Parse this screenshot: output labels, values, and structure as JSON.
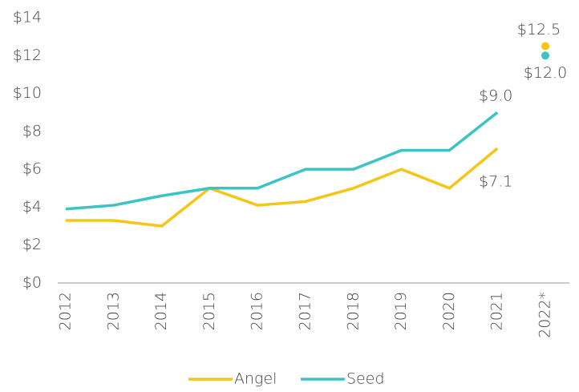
{
  "chart_data": {
    "type": "line",
    "categories": [
      "2012",
      "2013",
      "2014",
      "2015",
      "2016",
      "2017",
      "2018",
      "2019",
      "2020",
      "2021",
      "2022*"
    ],
    "series": [
      {
        "name": "Angel",
        "color": "#f5c518",
        "values": [
          3.3,
          3.3,
          3.0,
          5.0,
          4.1,
          4.3,
          5.0,
          6.0,
          5.0,
          7.1,
          12.5
        ],
        "value_labels": [
          null,
          null,
          null,
          null,
          null,
          null,
          null,
          null,
          null,
          "$7.1",
          "$12.5"
        ]
      },
      {
        "name": "Seed",
        "color": "#3cc3c3",
        "values": [
          3.9,
          4.1,
          4.6,
          5.0,
          5.0,
          6.0,
          6.0,
          7.0,
          7.0,
          9.0,
          12.0
        ],
        "value_labels": [
          null,
          null,
          null,
          null,
          null,
          null,
          null,
          null,
          null,
          "$9.0",
          "$12.0"
        ]
      }
    ],
    "last_point_unconnected": true,
    "ylim": [
      0,
      14
    ],
    "yticks": [
      {
        "value": 0,
        "label": "$0"
      },
      {
        "value": 2,
        "label": "$2"
      },
      {
        "value": 4,
        "label": "$4"
      },
      {
        "value": 6,
        "label": "$6"
      },
      {
        "value": 8,
        "label": "$8"
      },
      {
        "value": 10,
        "label": "$10"
      },
      {
        "value": 12,
        "label": "$12"
      },
      {
        "value": 14,
        "label": "$14"
      }
    ],
    "grid": false,
    "legend": "bottom"
  }
}
